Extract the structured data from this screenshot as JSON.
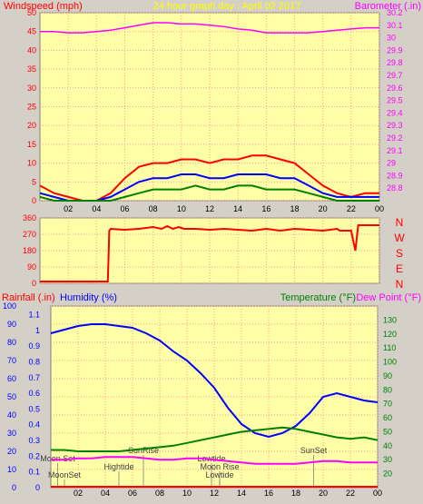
{
  "header": {
    "left_label": "Windspeed (mph)",
    "title": "24 hour graph day : April 02 2017",
    "right_label": "Barometer (.in)"
  },
  "colors": {
    "plot_bg": "#ffffa8",
    "grid": "#ff9999",
    "window_bg": "#d4d0c8",
    "wind_gust": "#ff0000",
    "wind_avg": "#0000ff",
    "wind_min": "#008000",
    "barometer": "#ff00ff",
    "direction": "#ff0000",
    "humidity": "#0000ff",
    "temperature": "#008000",
    "dewpoint": "#ff00ff",
    "rainfall": "#ff0000"
  },
  "compass": [
    "N",
    "W",
    "S",
    "E",
    "N"
  ],
  "panel3_labels": {
    "rain": "Rainfall (.in)",
    "humidity": "Humidity (%)",
    "temperature": "Temperature (°F)",
    "dewpoint": "Dew Point (°F)"
  },
  "events": [
    {
      "label": "Moon Set",
      "hour": 0.5,
      "row": 1
    },
    {
      "label": "MoonSet",
      "hour": 1.0,
      "row": 3
    },
    {
      "label": "Hightide",
      "hour": 5.0,
      "row": 2
    },
    {
      "label": "SunRise",
      "hour": 6.8,
      "row": 0
    },
    {
      "label": "Lowtide",
      "hour": 11.8,
      "row": 1
    },
    {
      "label": "Moon Rise",
      "hour": 12.4,
      "row": 2
    },
    {
      "label": "Lowtide",
      "hour": 12.4,
      "row": 3
    },
    {
      "label": "SunSet",
      "hour": 19.3,
      "row": 0
    }
  ],
  "chart_data": [
    {
      "type": "line",
      "name": "wind-barometer",
      "x_ticks": [
        "02",
        "04",
        "06",
        "08",
        "10",
        "12",
        "14",
        "16",
        "18",
        "20",
        "22",
        "00"
      ],
      "left_axis": {
        "label": "Windspeed (mph)",
        "ylim": [
          0,
          50
        ],
        "ticks": [
          0,
          5,
          10,
          15,
          20,
          25,
          30,
          35,
          40,
          45,
          50
        ]
      },
      "right_axis": {
        "label": "Barometer (.in)",
        "ylim": [
          28.7,
          30.2
        ],
        "ticks": [
          "28.8",
          "28.9",
          "29",
          "29.1",
          "29.2",
          "29.3",
          "29.4",
          "29.5",
          "29.6",
          "29.7",
          "29.8",
          "29.9",
          "30",
          "30.1",
          "30.2"
        ]
      },
      "series": [
        {
          "name": "Barometer",
          "axis": "right",
          "x": [
            0,
            1,
            2,
            3,
            4,
            5,
            6,
            7,
            8,
            9,
            10,
            11,
            12,
            13,
            14,
            15,
            16,
            17,
            18,
            19,
            20,
            21,
            22,
            23,
            24
          ],
          "values": [
            30.05,
            30.05,
            30.04,
            30.04,
            30.05,
            30.06,
            30.08,
            30.1,
            30.12,
            30.12,
            30.11,
            30.11,
            30.1,
            30.09,
            30.07,
            30.06,
            30.04,
            30.04,
            30.04,
            30.04,
            30.05,
            30.06,
            30.07,
            30.08,
            30.08
          ]
        },
        {
          "name": "Wind gust",
          "axis": "left",
          "x": [
            0,
            1,
            2,
            3,
            4,
            5,
            6,
            7,
            8,
            9,
            10,
            11,
            12,
            13,
            14,
            15,
            16,
            17,
            18,
            19,
            20,
            21,
            22,
            23,
            24
          ],
          "values": [
            4,
            2,
            1,
            0,
            0,
            2,
            6,
            9,
            10,
            10,
            11,
            11,
            10,
            11,
            11,
            12,
            12,
            11,
            10,
            7,
            4,
            2,
            1,
            2,
            2
          ]
        },
        {
          "name": "Wind average",
          "axis": "left",
          "x": [
            0,
            1,
            2,
            3,
            4,
            5,
            6,
            7,
            8,
            9,
            10,
            11,
            12,
            13,
            14,
            15,
            16,
            17,
            18,
            19,
            20,
            21,
            22,
            23,
            24
          ],
          "values": [
            2,
            1,
            0,
            0,
            0,
            1,
            3,
            5,
            6,
            6,
            7,
            7,
            6,
            6,
            7,
            7,
            7,
            6,
            6,
            4,
            2,
            1,
            1,
            1,
            1
          ]
        },
        {
          "name": "Wind minimum",
          "axis": "left",
          "x": [
            0,
            1,
            2,
            3,
            4,
            5,
            6,
            7,
            8,
            9,
            10,
            11,
            12,
            13,
            14,
            15,
            16,
            17,
            18,
            19,
            20,
            21,
            22,
            23,
            24
          ],
          "values": [
            1,
            0,
            0,
            0,
            0,
            0,
            1,
            2,
            3,
            3,
            3,
            4,
            3,
            3,
            4,
            4,
            3,
            3,
            3,
            2,
            1,
            0,
            0,
            0,
            0
          ]
        }
      ]
    },
    {
      "type": "line",
      "name": "wind-direction",
      "x_ticks": [
        "02",
        "04",
        "06",
        "08",
        "10",
        "12",
        "14",
        "16",
        "18",
        "20",
        "22",
        "00"
      ],
      "left_axis": {
        "ylim": [
          0,
          360
        ],
        "ticks": [
          0,
          90,
          180,
          270,
          360
        ]
      },
      "series": [
        {
          "name": "Wind direction",
          "x": [
            0,
            1,
            2,
            3,
            4,
            4.8,
            4.9,
            5,
            6,
            7,
            7.5,
            8,
            8.6,
            9,
            9.4,
            9.8,
            10.2,
            11,
            12,
            13,
            14,
            15,
            16,
            17,
            18,
            19,
            20,
            21,
            21.2,
            22,
            22.3,
            22.5,
            23,
            24
          ],
          "values": [
            10,
            10,
            10,
            10,
            10,
            10,
            290,
            300,
            295,
            300,
            305,
            310,
            300,
            315,
            300,
            310,
            300,
            300,
            295,
            300,
            295,
            290,
            300,
            290,
            300,
            295,
            290,
            300,
            290,
            290,
            180,
            320,
            320,
            320
          ]
        }
      ]
    },
    {
      "type": "line",
      "name": "temperature-humidity",
      "x_ticks": [
        "02",
        "04",
        "06",
        "08",
        "10",
        "12",
        "14",
        "16",
        "18",
        "20",
        "22",
        "00"
      ],
      "rain_axis": {
        "label": "Rainfall (.in)",
        "ticks": [
          "0",
          "0.1",
          "0.2",
          "0.3",
          "0.4",
          "0.5",
          "0.6",
          "0.7",
          "0.8",
          "0.9",
          "1",
          "1.1"
        ]
      },
      "humidity_axis": {
        "label": "Humidity (%)",
        "ylim": [
          0,
          100
        ],
        "ticks": [
          0,
          10,
          20,
          30,
          40,
          50,
          60,
          70,
          80,
          90,
          100
        ]
      },
      "temp_axis": {
        "label": "Temperature (°F)",
        "ylim": [
          10,
          140
        ],
        "ticks": [
          20,
          30,
          40,
          50,
          60,
          70,
          80,
          90,
          100,
          110,
          120,
          130
        ]
      },
      "series": [
        {
          "name": "Humidity",
          "axis": "humidity",
          "x": [
            0,
            1,
            2,
            3,
            4,
            5,
            6,
            7,
            8,
            9,
            10,
            11,
            12,
            13,
            14,
            15,
            16,
            17,
            18,
            19,
            20,
            21,
            22,
            23,
            24
          ],
          "values": [
            85,
            87,
            89,
            90,
            90,
            89,
            88,
            85,
            81,
            75,
            70,
            63,
            55,
            44,
            35,
            30,
            28,
            30,
            34,
            41,
            50,
            52,
            50,
            48,
            47
          ]
        },
        {
          "name": "Temperature",
          "axis": "temp",
          "x": [
            0,
            1,
            2,
            3,
            4,
            5,
            6,
            7,
            8,
            9,
            10,
            11,
            12,
            13,
            14,
            15,
            16,
            17,
            18,
            19,
            20,
            21,
            22,
            23,
            24
          ],
          "values": [
            37,
            37,
            36,
            36,
            36,
            36,
            37,
            38,
            39,
            40,
            42,
            44,
            46,
            48,
            50,
            51,
            52,
            53,
            52,
            50,
            48,
            46,
            45,
            46,
            44
          ]
        },
        {
          "name": "Dew Point",
          "axis": "temp",
          "x": [
            0,
            1,
            2,
            3,
            4,
            5,
            6,
            7,
            8,
            9,
            10,
            11,
            12,
            13,
            14,
            15,
            16,
            17,
            18,
            19,
            20,
            21,
            22,
            23,
            24
          ],
          "values": [
            30,
            30,
            31,
            31,
            32,
            32,
            32,
            31,
            30,
            30,
            31,
            31,
            30,
            29,
            28,
            27,
            27,
            27,
            27,
            28,
            29,
            29,
            28,
            28,
            28
          ]
        },
        {
          "name": "Rainfall",
          "axis": "rain",
          "x": [
            0,
            24
          ],
          "values": [
            0,
            0
          ]
        }
      ]
    }
  ]
}
